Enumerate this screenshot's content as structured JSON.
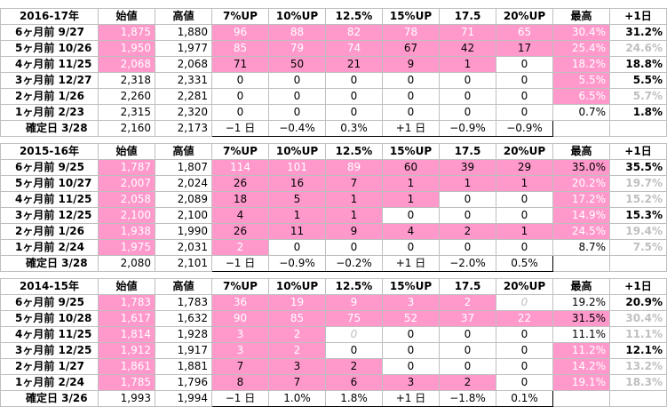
{
  "header_labels": [
    "始値",
    "高値",
    "7%UP",
    "10%UP",
    "12.5%",
    "15%UP",
    "17.5",
    "20%UP",
    "最高",
    "+1日"
  ],
  "colors": {
    "highlight": "#ff99cc",
    "highlight_text": "#ffffff",
    "gray_text": "#bfbfbf",
    "grid": "#bfbfbf"
  },
  "blocks": [
    {
      "title": "2016-17年",
      "rows": [
        {
          "label": "6ヶ月前  9/27",
          "open": "1,875",
          "high": "1,880",
          "up7": "96",
          "up10": "88",
          "up12_5": "82",
          "up15": "78",
          "up17_5": "71",
          "up20": "65",
          "max": "30.4%",
          "next": "31.2%"
        },
        {
          "label": "5ヶ月前  10/26",
          "open": "1,950",
          "high": "1,977",
          "up7": "85",
          "up10": "79",
          "up12_5": "74",
          "up15": "67",
          "up17_5": "42",
          "up20": "17",
          "max": "25.4%",
          "next": "24.6%"
        },
        {
          "label": "4ヶ月前  11/25",
          "open": "2,068",
          "high": "2,068",
          "up7": "71",
          "up10": "50",
          "up12_5": "21",
          "up15": "9",
          "up17_5": "1",
          "up20": "0",
          "max": "18.2%",
          "next": "18.8%"
        },
        {
          "label": "3ヶ月前  12/27",
          "open": "2,318",
          "high": "2,331",
          "up7": "0",
          "up10": "0",
          "up12_5": "0",
          "up15": "0",
          "up17_5": "0",
          "up20": "0",
          "max": "5.5%",
          "next": "5.5%"
        },
        {
          "label": "2ヶ月前  1/26",
          "open": "2,260",
          "high": "2,281",
          "up7": "0",
          "up10": "0",
          "up12_5": "0",
          "up15": "0",
          "up17_5": "0",
          "up20": "0",
          "max": "6.5%",
          "next": "5.7%"
        },
        {
          "label": "1ヶ月前  2/23",
          "open": "2,315",
          "high": "2,320",
          "up7": "0",
          "up10": "0",
          "up12_5": "0",
          "up15": "0",
          "up17_5": "0",
          "up20": "0",
          "max": "0.7%",
          "next": "1.8%"
        }
      ],
      "final": {
        "label": "確定日  3/28",
        "open": "2,160",
        "high": "2,173",
        "up7": "−1 日",
        "up10": "−0.4%",
        "up12_5": "0.3%",
        "up15": "+1 日",
        "up17_5": "−0.9%",
        "up20": "−0.9%"
      }
    },
    {
      "title": "2015-16年",
      "rows": [
        {
          "label": "6ヶ月前  9/25",
          "open": "1,787",
          "high": "1,807",
          "up7": "114",
          "up10": "101",
          "up12_5": "89",
          "up15": "60",
          "up17_5": "39",
          "up20": "29",
          "max": "35.0%",
          "next": "35.5%"
        },
        {
          "label": "5ヶ月前  10/27",
          "open": "2,007",
          "high": "2,024",
          "up7": "26",
          "up10": "16",
          "up12_5": "7",
          "up15": "1",
          "up17_5": "1",
          "up20": "1",
          "max": "20.2%",
          "next": "19.7%"
        },
        {
          "label": "4ヶ月前  11/25",
          "open": "2,058",
          "high": "2,089",
          "up7": "18",
          "up10": "5",
          "up12_5": "1",
          "up15": "1",
          "up17_5": "0",
          "up20": "0",
          "max": "17.2%",
          "next": "15.2%"
        },
        {
          "label": "3ヶ月前  12/25",
          "open": "2,100",
          "high": "2,100",
          "up7": "4",
          "up10": "1",
          "up12_5": "1",
          "up15": "0",
          "up17_5": "0",
          "up20": "0",
          "max": "14.9%",
          "next": "15.3%"
        },
        {
          "label": "2ヶ月前  1/26",
          "open": "1,938",
          "high": "1,990",
          "up7": "26",
          "up10": "11",
          "up12_5": "9",
          "up15": "4",
          "up17_5": "2",
          "up20": "1",
          "max": "24.5%",
          "next": "19.4%"
        },
        {
          "label": "1ヶ月前  2/24",
          "open": "1,975",
          "high": "2,031",
          "up7": "2",
          "up10": "0",
          "up12_5": "0",
          "up15": "0",
          "up17_5": "0",
          "up20": "0",
          "max": "8.7%",
          "next": "7.5%"
        }
      ],
      "final": {
        "label": "確定日  3/28",
        "open": "2,080",
        "high": "2,101",
        "up7": "−1 日",
        "up10": "−0.9%",
        "up12_5": "−0.2%",
        "up15": "+1 日",
        "up17_5": "−2.0%",
        "up20": "0.5%"
      }
    },
    {
      "title": "2014-15年",
      "rows": [
        {
          "label": "6ヶ月前  9/25",
          "open": "1,783",
          "high": "1,783",
          "up7": "36",
          "up10": "19",
          "up12_5": "9",
          "up15": "3",
          "up17_5": "2",
          "up20": "0",
          "max": "19.2%",
          "next": "20.9%"
        },
        {
          "label": "5ヶ月前  10/28",
          "open": "1,617",
          "high": "1,632",
          "up7": "90",
          "up10": "85",
          "up12_5": "75",
          "up15": "52",
          "up17_5": "37",
          "up20": "22",
          "max": "31.5%",
          "next": "30.4%"
        },
        {
          "label": "4ヶ月前  11/25",
          "open": "1,814",
          "high": "1,928",
          "up7": "3",
          "up10": "2",
          "up12_5": "0",
          "up15": "0",
          "up17_5": "0",
          "up20": "0",
          "max": "11.1%",
          "next": "11.1%"
        },
        {
          "label": "3ヶ月前  12/25",
          "open": "1,912",
          "high": "1,917",
          "up7": "3",
          "up10": "2",
          "up12_5": "0",
          "up15": "0",
          "up17_5": "0",
          "up20": "0",
          "max": "11.2%",
          "next": "12.1%"
        },
        {
          "label": "2ヶ月前  1/27",
          "open": "1,861",
          "high": "1,881",
          "up7": "7",
          "up10": "3",
          "up12_5": "2",
          "up15": "0",
          "up17_5": "0",
          "up20": "0",
          "max": "14.2%",
          "next": "13.2%"
        },
        {
          "label": "1ヶ月前  2/24",
          "open": "1,785",
          "high": "1,796",
          "up7": "8",
          "up10": "7",
          "up12_5": "6",
          "up15": "3",
          "up17_5": "2",
          "up20": "0",
          "max": "19.1%",
          "next": "18.3%"
        }
      ],
      "final": {
        "label": "確定日  3/26",
        "open": "1,993",
        "high": "1,994",
        "up7": "−1 日",
        "up10": "1.0%",
        "up12_5": "1.8%",
        "up15": "+1 日",
        "up17_5": "−1.8%",
        "up20": "0.1%"
      }
    }
  ]
}
